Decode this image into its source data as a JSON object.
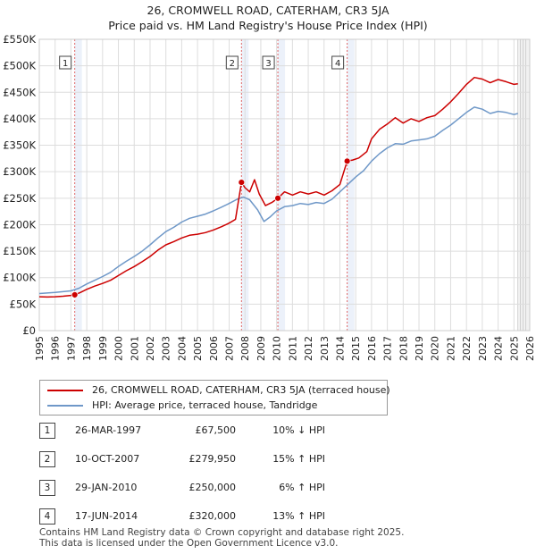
{
  "title": {
    "line1": "26, CROMWELL ROAD, CATERHAM, CR3 5JA",
    "line2": "Price paid vs. HM Land Registry's House Price Index (HPI)"
  },
  "chart_data": {
    "type": "line",
    "xlim": [
      1995,
      2026
    ],
    "ylim": [
      0,
      550000
    ],
    "x_ticks": [
      "1995",
      "1996",
      "1997",
      "1998",
      "1999",
      "2000",
      "2001",
      "2002",
      "2003",
      "2004",
      "2005",
      "2006",
      "2007",
      "2008",
      "2009",
      "2010",
      "2011",
      "2012",
      "2013",
      "2014",
      "2015",
      "2016",
      "2017",
      "2018",
      "2019",
      "2020",
      "2021",
      "2022",
      "2023",
      "2024",
      "2025",
      "2026"
    ],
    "y_ticks": [
      {
        "value": 0,
        "label": "£0"
      },
      {
        "value": 50000,
        "label": "£50K"
      },
      {
        "value": 100000,
        "label": "£100K"
      },
      {
        "value": 150000,
        "label": "£150K"
      },
      {
        "value": 200000,
        "label": "£200K"
      },
      {
        "value": 250000,
        "label": "£250K"
      },
      {
        "value": 300000,
        "label": "£300K"
      },
      {
        "value": 350000,
        "label": "£350K"
      },
      {
        "value": 400000,
        "label": "£400K"
      },
      {
        "value": 450000,
        "label": "£450K"
      },
      {
        "value": 500000,
        "label": "£500K"
      },
      {
        "value": 550000,
        "label": "£550K"
      }
    ],
    "grid": true,
    "series": [
      {
        "name": "26, CROMWELL ROAD, CATERHAM, CR3 5JA (terraced house)",
        "color": "#cc0000",
        "points": [
          [
            1995.0,
            64000
          ],
          [
            1995.5,
            63500
          ],
          [
            1996.0,
            64000
          ],
          [
            1996.5,
            65000
          ],
          [
            1997.0,
            66500
          ],
          [
            1997.24,
            67500
          ],
          [
            1997.6,
            72000
          ],
          [
            1998.0,
            78000
          ],
          [
            1998.5,
            84000
          ],
          [
            1999.0,
            89000
          ],
          [
            1999.5,
            95000
          ],
          [
            2000.0,
            104000
          ],
          [
            2000.5,
            113000
          ],
          [
            2001.0,
            121000
          ],
          [
            2001.5,
            130000
          ],
          [
            2002.0,
            140000
          ],
          [
            2002.5,
            152000
          ],
          [
            2003.0,
            162000
          ],
          [
            2003.5,
            168000
          ],
          [
            2004.0,
            175000
          ],
          [
            2004.5,
            180000
          ],
          [
            2005.0,
            182000
          ],
          [
            2005.5,
            185000
          ],
          [
            2006.0,
            190000
          ],
          [
            2006.5,
            196000
          ],
          [
            2007.0,
            203000
          ],
          [
            2007.4,
            210000
          ],
          [
            2007.78,
            279950
          ],
          [
            2008.0,
            270000
          ],
          [
            2008.3,
            262000
          ],
          [
            2008.6,
            285000
          ],
          [
            2008.9,
            258000
          ],
          [
            2009.3,
            236000
          ],
          [
            2009.7,
            242000
          ],
          [
            2010.08,
            250000
          ],
          [
            2010.5,
            262000
          ],
          [
            2011.0,
            256000
          ],
          [
            2011.5,
            262000
          ],
          [
            2012.0,
            258000
          ],
          [
            2012.5,
            262000
          ],
          [
            2013.0,
            256000
          ],
          [
            2013.5,
            264000
          ],
          [
            2014.0,
            276000
          ],
          [
            2014.46,
            320000
          ],
          [
            2014.8,
            322000
          ],
          [
            2015.2,
            326000
          ],
          [
            2015.7,
            338000
          ],
          [
            2016.0,
            362000
          ],
          [
            2016.5,
            380000
          ],
          [
            2017.0,
            390000
          ],
          [
            2017.5,
            402000
          ],
          [
            2018.0,
            392000
          ],
          [
            2018.5,
            400000
          ],
          [
            2019.0,
            395000
          ],
          [
            2019.5,
            402000
          ],
          [
            2020.0,
            406000
          ],
          [
            2020.5,
            418000
          ],
          [
            2021.0,
            432000
          ],
          [
            2021.5,
            448000
          ],
          [
            2022.0,
            465000
          ],
          [
            2022.5,
            478000
          ],
          [
            2023.0,
            475000
          ],
          [
            2023.5,
            468000
          ],
          [
            2024.0,
            474000
          ],
          [
            2024.5,
            470000
          ],
          [
            2025.0,
            465000
          ],
          [
            2025.25,
            466000
          ]
        ]
      },
      {
        "name": "HPI: Average price, terraced house, Tandridge",
        "color": "#6f98c8",
        "points": [
          [
            1995.0,
            70000
          ],
          [
            1995.5,
            71000
          ],
          [
            1996.0,
            72000
          ],
          [
            1996.5,
            73500
          ],
          [
            1997.0,
            75000
          ],
          [
            1997.5,
            80000
          ],
          [
            1998.0,
            88000
          ],
          [
            1998.5,
            95000
          ],
          [
            1999.0,
            102000
          ],
          [
            1999.5,
            110000
          ],
          [
            2000.0,
            121000
          ],
          [
            2000.5,
            131000
          ],
          [
            2001.0,
            140000
          ],
          [
            2001.5,
            150000
          ],
          [
            2002.0,
            162000
          ],
          [
            2002.5,
            175000
          ],
          [
            2003.0,
            187000
          ],
          [
            2003.5,
            195000
          ],
          [
            2004.0,
            205000
          ],
          [
            2004.5,
            212000
          ],
          [
            2005.0,
            216000
          ],
          [
            2005.5,
            220000
          ],
          [
            2006.0,
            226000
          ],
          [
            2006.5,
            233000
          ],
          [
            2007.0,
            240000
          ],
          [
            2007.5,
            248000
          ],
          [
            2007.9,
            252000
          ],
          [
            2008.3,
            247000
          ],
          [
            2008.8,
            228000
          ],
          [
            2009.2,
            206000
          ],
          [
            2009.6,
            215000
          ],
          [
            2010.0,
            226000
          ],
          [
            2010.5,
            234000
          ],
          [
            2011.0,
            236000
          ],
          [
            2011.5,
            240000
          ],
          [
            2012.0,
            238000
          ],
          [
            2012.5,
            242000
          ],
          [
            2013.0,
            240000
          ],
          [
            2013.5,
            248000
          ],
          [
            2014.0,
            262000
          ],
          [
            2014.5,
            276000
          ],
          [
            2015.0,
            290000
          ],
          [
            2015.5,
            302000
          ],
          [
            2016.0,
            320000
          ],
          [
            2016.5,
            334000
          ],
          [
            2017.0,
            345000
          ],
          [
            2017.5,
            353000
          ],
          [
            2018.0,
            352000
          ],
          [
            2018.5,
            358000
          ],
          [
            2019.0,
            360000
          ],
          [
            2019.5,
            362000
          ],
          [
            2020.0,
            367000
          ],
          [
            2020.5,
            378000
          ],
          [
            2021.0,
            388000
          ],
          [
            2021.5,
            400000
          ],
          [
            2022.0,
            412000
          ],
          [
            2022.5,
            422000
          ],
          [
            2023.0,
            418000
          ],
          [
            2023.5,
            410000
          ],
          [
            2024.0,
            414000
          ],
          [
            2024.5,
            412000
          ],
          [
            2025.0,
            408000
          ],
          [
            2025.25,
            410000
          ]
        ]
      }
    ],
    "sale_markers": [
      {
        "id": "1",
        "x": 1997.24,
        "y": 67500
      },
      {
        "id": "2",
        "x": 2007.78,
        "y": 279950
      },
      {
        "id": "3",
        "x": 2010.08,
        "y": 250000
      },
      {
        "id": "4",
        "x": 2014.46,
        "y": 320000
      }
    ],
    "forecast_start": 2025.25
  },
  "legend": {
    "property_label": "26, CROMWELL ROAD, CATERHAM, CR3 5JA (terraced house)",
    "hpi_label": "HPI: Average price, terraced house, Tandridge",
    "property_color": "#cc0000",
    "hpi_color": "#6f98c8"
  },
  "sales": [
    {
      "num": "1",
      "date": "26-MAR-1997",
      "price": "£67,500",
      "hpi": "10% ↓ HPI"
    },
    {
      "num": "2",
      "date": "10-OCT-2007",
      "price": "£279,950",
      "hpi": "15% ↑ HPI"
    },
    {
      "num": "3",
      "date": "29-JAN-2010",
      "price": "£250,000",
      "hpi": "6% ↑ HPI"
    },
    {
      "num": "4",
      "date": "17-JUN-2014",
      "price": "£320,000",
      "hpi": "13% ↑ HPI"
    }
  ],
  "footer": {
    "line1": "Contains HM Land Registry data © Crown copyright and database right 2025.",
    "line2": "This data is licensed under the Open Government Licence v3.0."
  }
}
